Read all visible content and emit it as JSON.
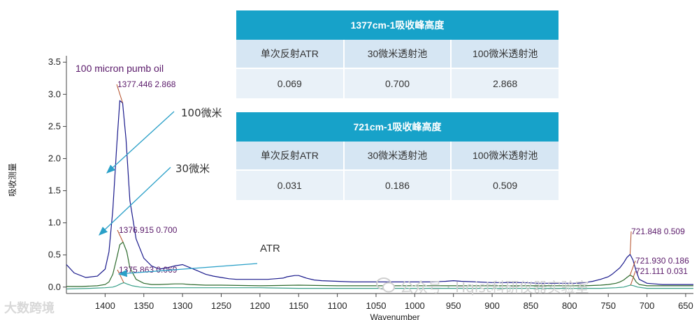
{
  "chart_data": {
    "type": "line",
    "xlabel": "Wavenumber",
    "ylabel": "吸收测量",
    "xlim": [
      1450,
      640
    ],
    "ylim": [
      -0.1,
      3.6
    ],
    "x_ticks": [
      "1400",
      "1350",
      "1300",
      "1250",
      "1200",
      "1150",
      "1100",
      "1050",
      "1000",
      "950",
      "900",
      "850",
      "800",
      "750",
      "700",
      "650"
    ],
    "x_tick_values": [
      1400,
      1350,
      1300,
      1250,
      1200,
      1150,
      1100,
      1050,
      1000,
      950,
      900,
      850,
      800,
      750,
      700,
      650
    ],
    "y_ticks": [
      "0.0",
      "0.5",
      "1.0",
      "1.5",
      "2.0",
      "2.5",
      "3.0",
      "3.5"
    ],
    "y_tick_values": [
      0,
      0.5,
      1.0,
      1.5,
      2.0,
      2.5,
      3.0,
      3.5
    ],
    "series": [
      {
        "color": "#1a1a8c",
        "x": [
          1450,
          1440,
          1425,
          1410,
          1400,
          1395,
          1390,
          1385,
          1381,
          1377.4,
          1373,
          1368,
          1360,
          1350,
          1340,
          1330,
          1320,
          1310,
          1300,
          1290,
          1280,
          1270,
          1260,
          1250,
          1240,
          1230,
          1220,
          1210,
          1200,
          1190,
          1180,
          1170,
          1165,
          1160,
          1155,
          1150,
          1145,
          1140,
          1130,
          1120,
          1100,
          1080,
          1060,
          1050,
          1040,
          1020,
          1000,
          980,
          960,
          950,
          940,
          920,
          900,
          880,
          860,
          840,
          820,
          800,
          790,
          780,
          770,
          760,
          750,
          745,
          740,
          735,
          730,
          726,
          721.8,
          718,
          714,
          710,
          700,
          690,
          680,
          660,
          640
        ],
        "y": [
          0.35,
          0.22,
          0.15,
          0.17,
          0.28,
          0.55,
          1.2,
          2.2,
          2.9,
          2.868,
          2.3,
          1.35,
          0.75,
          0.45,
          0.33,
          0.28,
          0.3,
          0.33,
          0.35,
          0.3,
          0.25,
          0.2,
          0.17,
          0.15,
          0.13,
          0.12,
          0.12,
          0.12,
          0.12,
          0.12,
          0.13,
          0.14,
          0.16,
          0.17,
          0.18,
          0.18,
          0.16,
          0.14,
          0.11,
          0.1,
          0.09,
          0.08,
          0.08,
          0.08,
          0.08,
          0.08,
          0.08,
          0.08,
          0.09,
          0.1,
          0.09,
          0.08,
          0.07,
          0.07,
          0.07,
          0.06,
          0.06,
          0.06,
          0.06,
          0.07,
          0.09,
          0.12,
          0.16,
          0.2,
          0.25,
          0.3,
          0.38,
          0.46,
          0.509,
          0.42,
          0.25,
          0.12,
          0.06,
          0.05,
          0.04,
          0.04,
          0.04
        ]
      },
      {
        "color": "#2e6b2e",
        "x": [
          1450,
          1430,
          1410,
          1400,
          1395,
          1390,
          1385,
          1381,
          1376.9,
          1372,
          1368,
          1360,
          1350,
          1340,
          1330,
          1310,
          1300,
          1290,
          1270,
          1250,
          1200,
          1150,
          1100,
          1050,
          1000,
          950,
          900,
          850,
          800,
          780,
          760,
          750,
          740,
          735,
          730,
          726,
          721.9,
          718,
          714,
          710,
          700,
          680,
          660,
          640
        ],
        "y": [
          0.01,
          0.01,
          0.02,
          0.04,
          0.08,
          0.2,
          0.45,
          0.66,
          0.7,
          0.55,
          0.3,
          0.12,
          0.06,
          0.04,
          0.04,
          0.05,
          0.05,
          0.04,
          0.03,
          0.03,
          0.02,
          0.03,
          0.02,
          0.02,
          0.02,
          0.02,
          0.02,
          0.02,
          0.02,
          0.02,
          0.03,
          0.04,
          0.06,
          0.08,
          0.11,
          0.15,
          0.186,
          0.16,
          0.08,
          0.04,
          0.02,
          0.02,
          0.02,
          0.02
        ]
      },
      {
        "color": "#3aa08a",
        "x": [
          1450,
          1420,
          1400,
          1390,
          1385,
          1380,
          1375.9,
          1372,
          1365,
          1355,
          1340,
          1300,
          1250,
          1200,
          1150,
          1100,
          1050,
          1000,
          950,
          900,
          850,
          800,
          760,
          740,
          730,
          726,
          721.1,
          717,
          712,
          700,
          680,
          660,
          640
        ],
        "y": [
          -0.03,
          -0.02,
          -0.01,
          0.0,
          0.02,
          0.05,
          0.069,
          0.05,
          0.02,
          0.0,
          -0.01,
          -0.01,
          -0.01,
          -0.01,
          -0.02,
          -0.02,
          -0.02,
          -0.02,
          -0.02,
          -0.02,
          -0.02,
          -0.02,
          -0.02,
          -0.01,
          0.0,
          0.015,
          0.031,
          0.02,
          0.0,
          -0.02,
          -0.02,
          -0.02,
          -0.02
        ]
      }
    ],
    "annotations": {
      "series_label": "100 micron pumb oil",
      "peak1": "1377.446  2.868",
      "peak2": "1376.915  0.700",
      "peak3": "1375.863  0.069",
      "peak4": "721.848  0.509",
      "peak5": "721.930  0.186",
      "peak6": "721.111  0.031",
      "arrow1": "100微米",
      "arrow2": "30微米",
      "arrow3": "ATR"
    },
    "colors": {
      "annotation_text": "#5a1a6a",
      "peak_pointer": "#b5502a",
      "arrow": "#2aa0c8",
      "table_title": "#17a2c9"
    }
  },
  "table1": {
    "title": "1377cm-1吸收峰高度",
    "headers": [
      "单次反射ATR",
      "30微米透射池",
      "100微米透射池"
    ],
    "values": [
      "0.069",
      "0.700",
      "2.868"
    ]
  },
  "table2": {
    "title": "721cm-1吸收峰高度",
    "headers": [
      "单次反射ATR",
      "30微米透射池",
      "100微米透射池"
    ],
    "values": [
      "0.031",
      "0.186",
      "0.509"
    ]
  },
  "watermark": "公众号 · Hqist科研仪器实验室",
  "corner_logo": "大数跨境"
}
